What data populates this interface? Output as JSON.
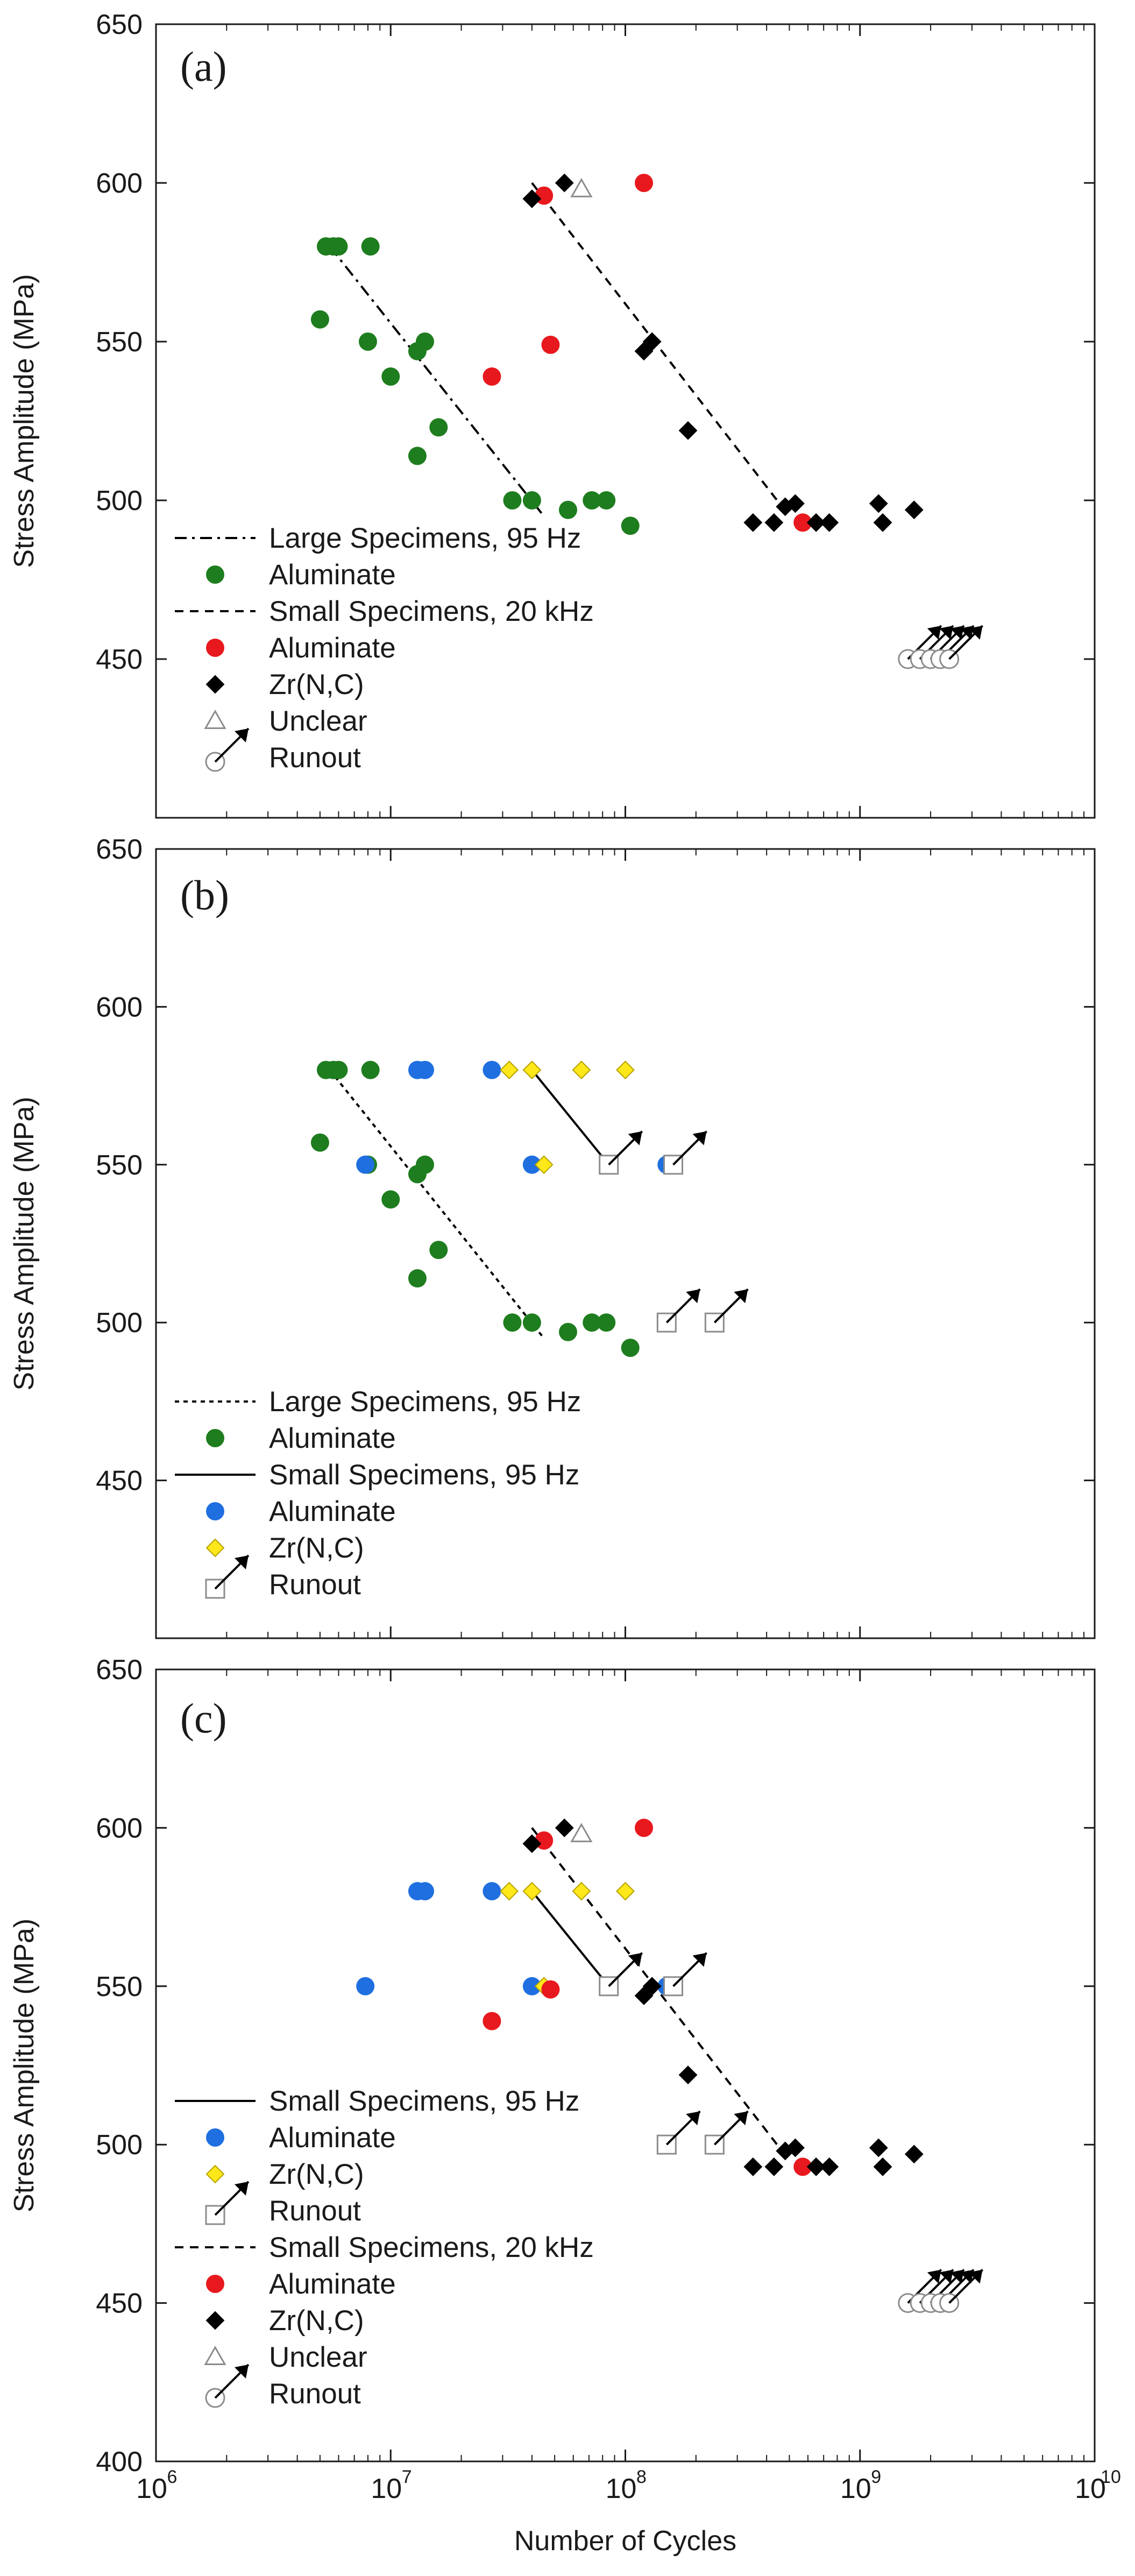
{
  "colors": {
    "green": "#1e7d1e",
    "red": "#e8191e",
    "blue": "#1f6fe0",
    "yellow": "#ffe81a",
    "black": "#000000",
    "gray": "#8c8c8c"
  },
  "x_axis": {
    "title": "Number of Cycles",
    "scale": "log",
    "range": [
      1000000,
      10000000000
    ],
    "tick_labels": [
      {
        "base": "10",
        "exp": "6"
      },
      {
        "base": "10",
        "exp": "7"
      },
      {
        "base": "10",
        "exp": "8"
      },
      {
        "base": "10",
        "exp": "9"
      },
      {
        "base": "10",
        "exp": "10"
      }
    ]
  },
  "chart_data": [
    {
      "panel": "(a)",
      "type": "scatter",
      "ylabel": "Stress Amplitude (MPa)",
      "ylim": [
        400,
        650
      ],
      "yticks": [
        "450",
        "500",
        "550",
        "600",
        "650"
      ],
      "legend": [
        {
          "label": "Large Specimens, 95 Hz",
          "marker": "dashdot-line"
        },
        {
          "label": "Aluminate",
          "marker": "green-circle"
        },
        {
          "label": "Small Specimens, 20 kHz",
          "marker": "dashed-line"
        },
        {
          "label": "Aluminate",
          "marker": "red-circle"
        },
        {
          "label": "Zr(N,C)",
          "marker": "black-diamond"
        },
        {
          "label": "Unclear",
          "marker": "gray-triangle"
        },
        {
          "label": "Runout",
          "marker": "gray-circle-arrow"
        }
      ],
      "series": [
        {
          "name": "Large Specimens, 95 Hz - Aluminate",
          "marker": "green-circle",
          "x": [
            5300000,
            5700000,
            6000000,
            8200000,
            5000000,
            8000000,
            14000000,
            13000000,
            10000000,
            16000000,
            13000000,
            33000000,
            40000000,
            57000000,
            72000000,
            83000000,
            105000000
          ],
          "y": [
            580,
            580,
            580,
            580,
            557,
            550,
            550,
            547,
            539,
            523,
            514,
            500,
            500,
            497,
            500,
            500,
            492
          ]
        },
        {
          "name": "Small Specimens, 20 kHz - Aluminate",
          "marker": "red-circle",
          "x": [
            45000000,
            120000000,
            48000000,
            27000000,
            570000000
          ],
          "y": [
            596,
            600,
            549,
            539,
            493
          ]
        },
        {
          "name": "Small Specimens, 20 kHz - Zr(N,C)",
          "marker": "black-diamond",
          "x": [
            40000000,
            55000000,
            120000000,
            130000000,
            185000000,
            350000000,
            430000000,
            480000000,
            530000000,
            650000000,
            740000000,
            1200000000,
            1250000000,
            1700000000
          ],
          "y": [
            595,
            600,
            547,
            550,
            522,
            493,
            493,
            498,
            499,
            493,
            493,
            499,
            493,
            497
          ]
        },
        {
          "name": "Unclear",
          "marker": "gray-triangle",
          "x": [
            65000000
          ],
          "y": [
            598
          ]
        },
        {
          "name": "Runout",
          "marker": "gray-circle-arrow",
          "x": [
            1600000000,
            1800000000,
            2000000000,
            2200000000,
            2400000000
          ],
          "y": [
            450,
            450,
            450,
            450,
            450
          ]
        }
      ],
      "fit_lines": [
        {
          "name": "Large Specimens, 95 Hz",
          "style": "dashdot",
          "x": [
            5500000,
            45000000
          ],
          "y": [
            580,
            495
          ]
        },
        {
          "name": "Small Specimens, 20 kHz",
          "style": "dashed",
          "x": [
            40000000,
            500000000
          ],
          "y": [
            600,
            495
          ]
        }
      ]
    },
    {
      "panel": "(b)",
      "type": "scatter",
      "ylabel": "Stress Amplitude (MPa)",
      "ylim": [
        400,
        650
      ],
      "yticks": [
        "450",
        "500",
        "550",
        "600",
        "650"
      ],
      "legend": [
        {
          "label": "Large Specimens, 95 Hz",
          "marker": "dotted-line"
        },
        {
          "label": "Aluminate",
          "marker": "green-circle"
        },
        {
          "label": "Small Specimens, 95 Hz",
          "marker": "solid-line"
        },
        {
          "label": "Aluminate",
          "marker": "blue-circle"
        },
        {
          "label": "Zr(N,C)",
          "marker": "yellow-diamond"
        },
        {
          "label": "Runout",
          "marker": "gray-square-arrow"
        }
      ],
      "series": [
        {
          "name": "Large Specimens, 95 Hz - Aluminate",
          "marker": "green-circle",
          "x": [
            5300000,
            5700000,
            6000000,
            8200000,
            5000000,
            8000000,
            14000000,
            13000000,
            10000000,
            16000000,
            13000000,
            33000000,
            40000000,
            57000000,
            72000000,
            83000000,
            105000000
          ],
          "y": [
            580,
            580,
            580,
            580,
            557,
            550,
            550,
            547,
            539,
            523,
            514,
            500,
            500,
            497,
            500,
            500,
            492
          ]
        },
        {
          "name": "Small Specimens, 95 Hz - Aluminate",
          "marker": "blue-circle",
          "x": [
            13000000,
            14000000,
            27000000,
            40000000,
            7800000,
            150000000
          ],
          "y": [
            580,
            580,
            580,
            550,
            550,
            550
          ]
        },
        {
          "name": "Small Specimens, 95 Hz - Zr(N,C)",
          "marker": "yellow-diamond",
          "x": [
            32000000,
            40000000,
            65000000,
            100000000,
            45000000,
            85000000
          ],
          "y": [
            580,
            580,
            580,
            580,
            550,
            550
          ]
        },
        {
          "name": "Runout",
          "marker": "gray-square-arrow",
          "x": [
            85000000,
            160000000,
            150000000,
            240000000
          ],
          "y": [
            550,
            550,
            500,
            500
          ]
        }
      ],
      "fit_lines": [
        {
          "name": "Large Specimens, 95 Hz",
          "style": "dotted",
          "x": [
            5500000,
            45000000
          ],
          "y": [
            580,
            495
          ]
        },
        {
          "name": "Small Specimens, 95 Hz",
          "style": "solid",
          "x": [
            40000000,
            85000000
          ],
          "y": [
            580,
            550
          ]
        }
      ]
    },
    {
      "panel": "(c)",
      "type": "scatter",
      "xlabel": "Number of Cycles",
      "ylabel": "Stress Amplitude (MPa)",
      "ylim": [
        400,
        650
      ],
      "yticks": [
        "400",
        "450",
        "500",
        "550",
        "600",
        "650"
      ],
      "legend": [
        {
          "label": "Small Specimens, 95 Hz",
          "marker": "solid-line"
        },
        {
          "label": "Aluminate",
          "marker": "blue-circle"
        },
        {
          "label": "Zr(N,C)",
          "marker": "yellow-diamond"
        },
        {
          "label": "Runout",
          "marker": "gray-square-arrow"
        },
        {
          "label": "Small Specimens, 20 kHz",
          "marker": "dashed-line"
        },
        {
          "label": "Aluminate",
          "marker": "red-circle"
        },
        {
          "label": "Zr(N,C)",
          "marker": "black-diamond"
        },
        {
          "label": "Unclear",
          "marker": "gray-triangle"
        },
        {
          "label": "Runout",
          "marker": "gray-circle-arrow"
        }
      ],
      "series": [
        {
          "name": "Small Specimens, 95 Hz - Aluminate",
          "marker": "blue-circle",
          "x": [
            13000000,
            14000000,
            27000000,
            40000000,
            7800000,
            150000000
          ],
          "y": [
            580,
            580,
            580,
            550,
            550,
            550
          ]
        },
        {
          "name": "Small Specimens, 95 Hz - Zr(N,C)",
          "marker": "yellow-diamond",
          "x": [
            32000000,
            40000000,
            65000000,
            100000000,
            45000000,
            85000000
          ],
          "y": [
            580,
            580,
            580,
            580,
            550,
            550
          ]
        },
        {
          "name": "Small Specimens, 95 Hz - Runout",
          "marker": "gray-square-arrow",
          "x": [
            85000000,
            160000000,
            150000000,
            240000000
          ],
          "y": [
            550,
            550,
            500,
            500
          ]
        },
        {
          "name": "Small Specimens, 20 kHz - Aluminate",
          "marker": "red-circle",
          "x": [
            45000000,
            120000000,
            48000000,
            27000000,
            570000000
          ],
          "y": [
            596,
            600,
            549,
            539,
            493
          ]
        },
        {
          "name": "Small Specimens, 20 kHz - Zr(N,C)",
          "marker": "black-diamond",
          "x": [
            40000000,
            55000000,
            120000000,
            130000000,
            185000000,
            350000000,
            430000000,
            480000000,
            530000000,
            650000000,
            740000000,
            1200000000,
            1250000000,
            1700000000
          ],
          "y": [
            595,
            600,
            547,
            550,
            522,
            493,
            493,
            498,
            499,
            493,
            493,
            499,
            493,
            497
          ]
        },
        {
          "name": "Unclear",
          "marker": "gray-triangle",
          "x": [
            65000000
          ],
          "y": [
            598
          ]
        },
        {
          "name": "Small Specimens, 20 kHz - Runout",
          "marker": "gray-circle-arrow",
          "x": [
            1600000000,
            1800000000,
            2000000000,
            2200000000,
            2400000000
          ],
          "y": [
            450,
            450,
            450,
            450,
            450
          ]
        }
      ],
      "fit_lines": [
        {
          "name": "Small Specimens, 95 Hz",
          "style": "solid",
          "x": [
            40000000,
            85000000
          ],
          "y": [
            580,
            550
          ]
        },
        {
          "name": "Small Specimens, 20 kHz",
          "style": "dashed",
          "x": [
            40000000,
            500000000
          ],
          "y": [
            600,
            495
          ]
        }
      ]
    }
  ]
}
